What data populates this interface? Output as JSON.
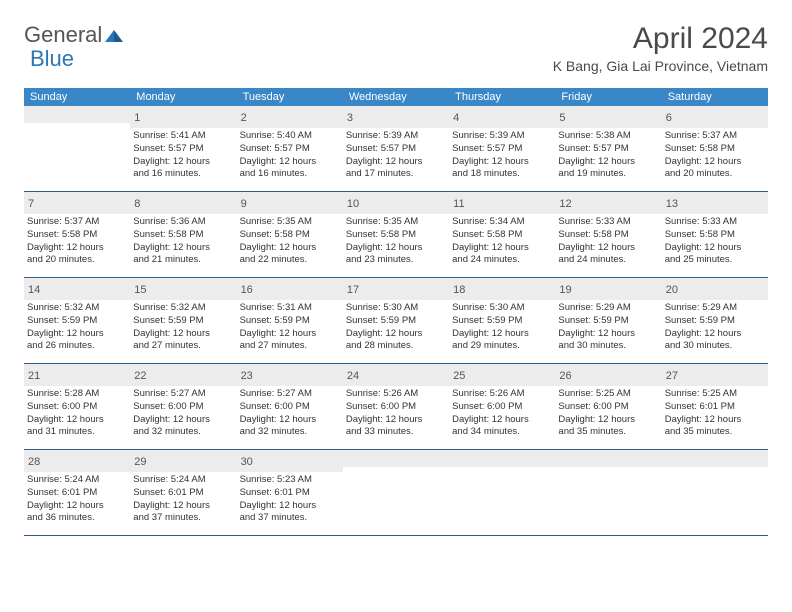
{
  "logo": {
    "text1": "General",
    "text2": "Blue"
  },
  "title": "April 2024",
  "location": "K Bang, Gia Lai Province, Vietnam",
  "colors": {
    "header_bg": "#3a87c8",
    "header_text": "#ffffff",
    "daynum_bg": "#ececec",
    "week_border": "#2b5f8a",
    "text": "#333333",
    "logo_gray": "#555555",
    "logo_blue": "#2b77b5"
  },
  "weekdays": [
    "Sunday",
    "Monday",
    "Tuesday",
    "Wednesday",
    "Thursday",
    "Friday",
    "Saturday"
  ],
  "weeks": [
    [
      {
        "num": "",
        "lines": []
      },
      {
        "num": "1",
        "lines": [
          "Sunrise: 5:41 AM",
          "Sunset: 5:57 PM",
          "Daylight: 12 hours",
          "and 16 minutes."
        ]
      },
      {
        "num": "2",
        "lines": [
          "Sunrise: 5:40 AM",
          "Sunset: 5:57 PM",
          "Daylight: 12 hours",
          "and 16 minutes."
        ]
      },
      {
        "num": "3",
        "lines": [
          "Sunrise: 5:39 AM",
          "Sunset: 5:57 PM",
          "Daylight: 12 hours",
          "and 17 minutes."
        ]
      },
      {
        "num": "4",
        "lines": [
          "Sunrise: 5:39 AM",
          "Sunset: 5:57 PM",
          "Daylight: 12 hours",
          "and 18 minutes."
        ]
      },
      {
        "num": "5",
        "lines": [
          "Sunrise: 5:38 AM",
          "Sunset: 5:57 PM",
          "Daylight: 12 hours",
          "and 19 minutes."
        ]
      },
      {
        "num": "6",
        "lines": [
          "Sunrise: 5:37 AM",
          "Sunset: 5:58 PM",
          "Daylight: 12 hours",
          "and 20 minutes."
        ]
      }
    ],
    [
      {
        "num": "7",
        "lines": [
          "Sunrise: 5:37 AM",
          "Sunset: 5:58 PM",
          "Daylight: 12 hours",
          "and 20 minutes."
        ]
      },
      {
        "num": "8",
        "lines": [
          "Sunrise: 5:36 AM",
          "Sunset: 5:58 PM",
          "Daylight: 12 hours",
          "and 21 minutes."
        ]
      },
      {
        "num": "9",
        "lines": [
          "Sunrise: 5:35 AM",
          "Sunset: 5:58 PM",
          "Daylight: 12 hours",
          "and 22 minutes."
        ]
      },
      {
        "num": "10",
        "lines": [
          "Sunrise: 5:35 AM",
          "Sunset: 5:58 PM",
          "Daylight: 12 hours",
          "and 23 minutes."
        ]
      },
      {
        "num": "11",
        "lines": [
          "Sunrise: 5:34 AM",
          "Sunset: 5:58 PM",
          "Daylight: 12 hours",
          "and 24 minutes."
        ]
      },
      {
        "num": "12",
        "lines": [
          "Sunrise: 5:33 AM",
          "Sunset: 5:58 PM",
          "Daylight: 12 hours",
          "and 24 minutes."
        ]
      },
      {
        "num": "13",
        "lines": [
          "Sunrise: 5:33 AM",
          "Sunset: 5:58 PM",
          "Daylight: 12 hours",
          "and 25 minutes."
        ]
      }
    ],
    [
      {
        "num": "14",
        "lines": [
          "Sunrise: 5:32 AM",
          "Sunset: 5:59 PM",
          "Daylight: 12 hours",
          "and 26 minutes."
        ]
      },
      {
        "num": "15",
        "lines": [
          "Sunrise: 5:32 AM",
          "Sunset: 5:59 PM",
          "Daylight: 12 hours",
          "and 27 minutes."
        ]
      },
      {
        "num": "16",
        "lines": [
          "Sunrise: 5:31 AM",
          "Sunset: 5:59 PM",
          "Daylight: 12 hours",
          "and 27 minutes."
        ]
      },
      {
        "num": "17",
        "lines": [
          "Sunrise: 5:30 AM",
          "Sunset: 5:59 PM",
          "Daylight: 12 hours",
          "and 28 minutes."
        ]
      },
      {
        "num": "18",
        "lines": [
          "Sunrise: 5:30 AM",
          "Sunset: 5:59 PM",
          "Daylight: 12 hours",
          "and 29 minutes."
        ]
      },
      {
        "num": "19",
        "lines": [
          "Sunrise: 5:29 AM",
          "Sunset: 5:59 PM",
          "Daylight: 12 hours",
          "and 30 minutes."
        ]
      },
      {
        "num": "20",
        "lines": [
          "Sunrise: 5:29 AM",
          "Sunset: 5:59 PM",
          "Daylight: 12 hours",
          "and 30 minutes."
        ]
      }
    ],
    [
      {
        "num": "21",
        "lines": [
          "Sunrise: 5:28 AM",
          "Sunset: 6:00 PM",
          "Daylight: 12 hours",
          "and 31 minutes."
        ]
      },
      {
        "num": "22",
        "lines": [
          "Sunrise: 5:27 AM",
          "Sunset: 6:00 PM",
          "Daylight: 12 hours",
          "and 32 minutes."
        ]
      },
      {
        "num": "23",
        "lines": [
          "Sunrise: 5:27 AM",
          "Sunset: 6:00 PM",
          "Daylight: 12 hours",
          "and 32 minutes."
        ]
      },
      {
        "num": "24",
        "lines": [
          "Sunrise: 5:26 AM",
          "Sunset: 6:00 PM",
          "Daylight: 12 hours",
          "and 33 minutes."
        ]
      },
      {
        "num": "25",
        "lines": [
          "Sunrise: 5:26 AM",
          "Sunset: 6:00 PM",
          "Daylight: 12 hours",
          "and 34 minutes."
        ]
      },
      {
        "num": "26",
        "lines": [
          "Sunrise: 5:25 AM",
          "Sunset: 6:00 PM",
          "Daylight: 12 hours",
          "and 35 minutes."
        ]
      },
      {
        "num": "27",
        "lines": [
          "Sunrise: 5:25 AM",
          "Sunset: 6:01 PM",
          "Daylight: 12 hours",
          "and 35 minutes."
        ]
      }
    ],
    [
      {
        "num": "28",
        "lines": [
          "Sunrise: 5:24 AM",
          "Sunset: 6:01 PM",
          "Daylight: 12 hours",
          "and 36 minutes."
        ]
      },
      {
        "num": "29",
        "lines": [
          "Sunrise: 5:24 AM",
          "Sunset: 6:01 PM",
          "Daylight: 12 hours",
          "and 37 minutes."
        ]
      },
      {
        "num": "30",
        "lines": [
          "Sunrise: 5:23 AM",
          "Sunset: 6:01 PM",
          "Daylight: 12 hours",
          "and 37 minutes."
        ]
      },
      {
        "num": "",
        "lines": []
      },
      {
        "num": "",
        "lines": []
      },
      {
        "num": "",
        "lines": []
      },
      {
        "num": "",
        "lines": []
      }
    ]
  ]
}
